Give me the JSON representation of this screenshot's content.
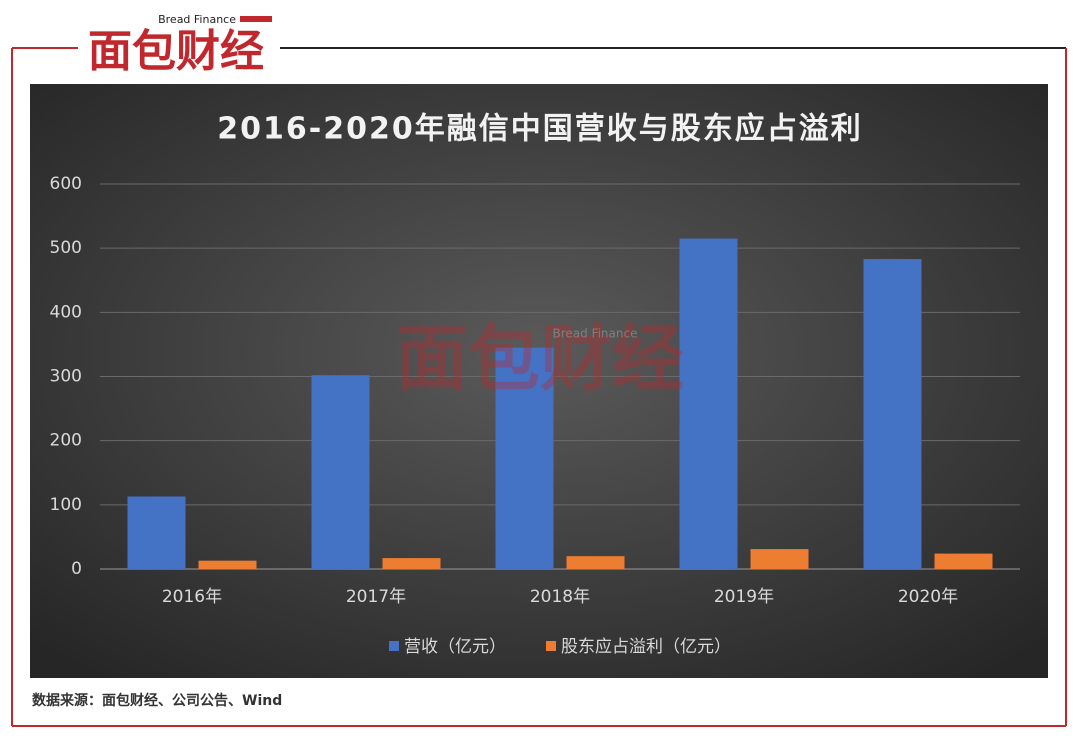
{
  "brand": {
    "name": "面包财经",
    "english": "Bread Finance"
  },
  "chart_data": {
    "type": "bar",
    "title": "2016-2020年融信中国营收与股东应占溢利",
    "categories": [
      "2016年",
      "2017年",
      "2018年",
      "2019年",
      "2020年"
    ],
    "series": [
      {
        "name": "营收（亿元）",
        "color": "#4472c4",
        "values": [
          113,
          302,
          345,
          515,
          483
        ]
      },
      {
        "name": "股东应占溢利（亿元）",
        "color": "#ed7d31",
        "values": [
          13,
          17,
          20,
          31,
          24
        ]
      }
    ],
    "ylim": [
      0,
      600
    ],
    "yticks": [
      0,
      100,
      200,
      300,
      400,
      500,
      600
    ],
    "grid": true,
    "legend": "bottom"
  },
  "source": "数据来源：面包财经、公司公告、Wind"
}
